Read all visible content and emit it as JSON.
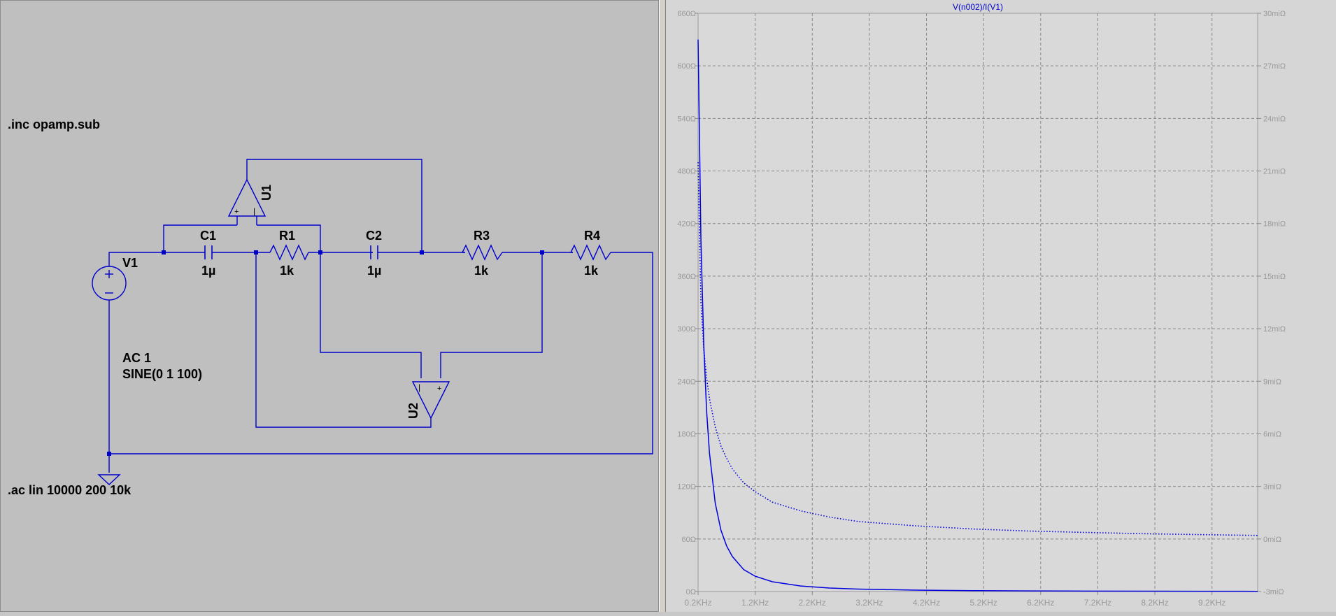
{
  "schematic": {
    "directive_include": ".inc opamp.sub",
    "directive_ac": ".ac lin 10000 200 10k",
    "components": {
      "v1": {
        "ref": "V1",
        "value_line1": "AC 1",
        "value_line2": "SINE(0 1 100)"
      },
      "c1": {
        "ref": "C1",
        "value": "1µ"
      },
      "r1": {
        "ref": "R1",
        "value": "1k"
      },
      "c2": {
        "ref": "C2",
        "value": "1µ"
      },
      "r3": {
        "ref": "R3",
        "value": "1k"
      },
      "r4": {
        "ref": "R4",
        "value": "1k"
      },
      "u1": {
        "ref": "U1"
      },
      "u2": {
        "ref": "U2"
      }
    },
    "colors": {
      "wire": "#0000cc",
      "background": "#bfbfbf",
      "text": "#000000"
    }
  },
  "plot": {
    "title": "V(n002)/I(V1)",
    "colors": {
      "trace": "#0000dd",
      "title": "#0000cc",
      "grid": "#888888",
      "plot_bg": "#d9d9d9",
      "axis_text": "#999999"
    }
  },
  "chart_data": {
    "type": "line",
    "title": "V(n002)/I(V1)",
    "x_unit": "KHz",
    "x_range": [
      0.2,
      10
    ],
    "x_ticks": [
      "0.2KHz",
      "1.2KHz",
      "2.2KHz",
      "3.2KHz",
      "4.2KHz",
      "5.2KHz",
      "6.2KHz",
      "7.2KHz",
      "8.2KHz",
      "9.2KHz"
    ],
    "x_tick_values": [
      0.2,
      1.2,
      2.2,
      3.2,
      4.2,
      5.2,
      6.2,
      7.2,
      8.2,
      9.2
    ],
    "y_left_ticks": [
      "0Ω",
      "60Ω",
      "120Ω",
      "180Ω",
      "240Ω",
      "300Ω",
      "360Ω",
      "420Ω",
      "480Ω",
      "540Ω",
      "600Ω",
      "660Ω"
    ],
    "y_left_range": [
      0,
      660
    ],
    "y_right_ticks": [
      "-3miΩ",
      "0miΩ",
      "3miΩ",
      "6miΩ",
      "9miΩ",
      "12miΩ",
      "15miΩ",
      "18miΩ",
      "21miΩ",
      "24miΩ",
      "27miΩ",
      "30miΩ"
    ],
    "y_right_range": [
      -3,
      30
    ],
    "grid": true,
    "series": [
      {
        "style": "solid",
        "axis": "left",
        "x": [
          0.2,
          0.25,
          0.3,
          0.35,
          0.4,
          0.5,
          0.6,
          0.7,
          0.8,
          1.0,
          1.2,
          1.5,
          2.0,
          2.5,
          3.0,
          4.0,
          5.0,
          6.0,
          7.0,
          8.0,
          9.0,
          10.0
        ],
        "y": [
          630,
          400,
          280,
          206,
          158,
          101,
          70,
          52,
          40,
          25,
          17.5,
          11.2,
          6.3,
          4.0,
          2.8,
          1.6,
          1.0,
          0.7,
          0.5,
          0.4,
          0.3,
          0.25
        ]
      },
      {
        "style": "dotted",
        "axis": "right",
        "x": [
          0.2,
          0.25,
          0.3,
          0.35,
          0.4,
          0.5,
          0.6,
          0.7,
          0.8,
          1.0,
          1.2,
          1.5,
          2.0,
          2.5,
          3.0,
          4.0,
          5.0,
          6.0,
          7.0,
          8.0,
          9.0,
          10.0
        ],
        "y": [
          21.5,
          13.5,
          10.8,
          9.2,
          8.0,
          6.4,
          5.3,
          4.6,
          4.0,
          3.2,
          2.7,
          2.1,
          1.6,
          1.25,
          1.0,
          0.75,
          0.57,
          0.45,
          0.37,
          0.3,
          0.25,
          0.2
        ]
      }
    ]
  }
}
